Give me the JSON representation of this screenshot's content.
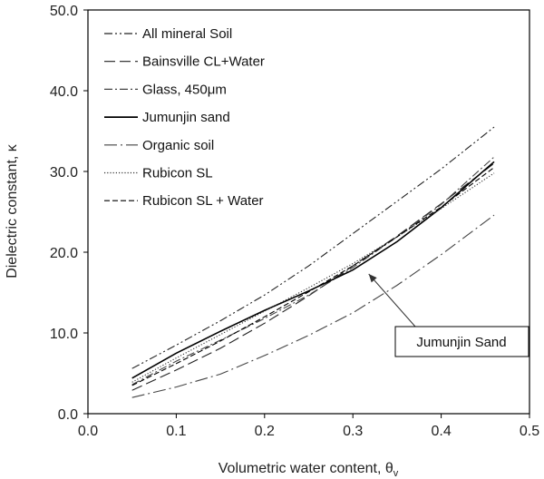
{
  "chart_data": {
    "type": "line",
    "xlabel": "Volumetric water content, θ",
    "xlabel_sub": "v",
    "ylabel": "Dielectric constant, κ",
    "xlim": [
      0.0,
      0.5
    ],
    "ylim": [
      0.0,
      50.0
    ],
    "x_ticks": [
      "0.0",
      "0.1",
      "0.2",
      "0.3",
      "0.4",
      "0.5"
    ],
    "y_ticks": [
      "0.0",
      "10.0",
      "20.0",
      "30.0",
      "40.0",
      "50.0"
    ],
    "grid": false,
    "legend_position": "top-left",
    "x": [
      0.05,
      0.1,
      0.15,
      0.2,
      0.25,
      0.3,
      0.35,
      0.4,
      0.46
    ],
    "series": [
      {
        "name": "All mineral Soil",
        "style": "dashdotdot",
        "color": "#222222",
        "values": [
          5.6,
          8.5,
          11.5,
          14.7,
          18.3,
          22.3,
          26.3,
          30.3,
          35.5
        ]
      },
      {
        "name": "Bainsville CL+Water",
        "style": "longdash",
        "color": "#222222",
        "values": [
          2.9,
          5.4,
          8.1,
          11.2,
          14.6,
          18.3,
          22.0,
          26.0,
          31.0
        ]
      },
      {
        "name": "Glass, 450μm",
        "style": "dashdot",
        "color": "#444444",
        "values": [
          3.6,
          6.5,
          9.1,
          11.8,
          14.7,
          18.1,
          21.9,
          25.9,
          31.8
        ]
      },
      {
        "name": "Jumunjin sand",
        "style": "solid",
        "color": "#000000",
        "values": [
          4.4,
          7.5,
          10.2,
          12.8,
          15.2,
          17.8,
          21.3,
          25.5,
          31.2
        ]
      },
      {
        "name": "Organic soil",
        "style": "longdashdot",
        "color": "#444444",
        "values": [
          2.0,
          3.3,
          4.9,
          7.2,
          9.7,
          12.5,
          15.9,
          19.7,
          24.6
        ]
      },
      {
        "name": "Rubicon SL",
        "style": "dotted",
        "color": "#333333",
        "values": [
          3.9,
          6.9,
          9.8,
          12.7,
          15.6,
          18.6,
          21.9,
          25.4,
          29.8
        ]
      },
      {
        "name": "Rubicon SL + Water",
        "style": "dashed",
        "color": "#000000",
        "values": [
          3.5,
          6.2,
          9.0,
          12.0,
          15.1,
          18.3,
          21.9,
          25.6,
          30.5
        ]
      }
    ],
    "annotation": {
      "text": "Jumunjin Sand",
      "points_to": {
        "x": 0.318,
        "y": 17.3
      }
    }
  }
}
